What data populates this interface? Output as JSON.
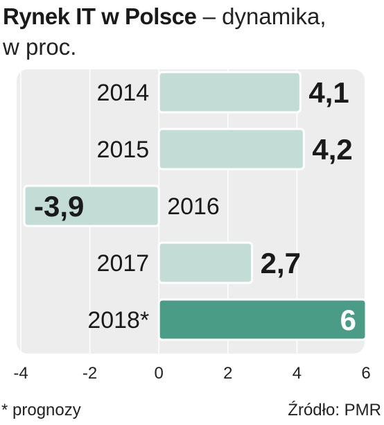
{
  "title": {
    "bold": "Rynek IT w Polsce",
    "rest": " – dynamika,",
    "line2": "w proc."
  },
  "footnote": "* prognozy",
  "source": "Źródło: PMR",
  "chart_data": {
    "type": "bar",
    "orientation": "horizontal",
    "categories": [
      "2014",
      "2015",
      "2016",
      "2017",
      "2018*"
    ],
    "values": [
      4.1,
      4.2,
      -3.9,
      2.7,
      6
    ],
    "value_labels": [
      "4,1",
      "4,2",
      "-3,9",
      "2,7",
      "6"
    ],
    "highlight_index": 4,
    "xlim": [
      -4,
      6
    ],
    "xticks": [
      -4,
      -2,
      0,
      2,
      4,
      6
    ],
    "xtick_labels": [
      "-4",
      "-2",
      "0",
      "2",
      "4",
      "6"
    ],
    "grid": true,
    "colors": {
      "bar": "#c3ddd6",
      "bar_highlight": "#4a9c86",
      "bar_stroke": "#ffffff",
      "panel": "#ededed",
      "grid": "#ffffff"
    }
  }
}
